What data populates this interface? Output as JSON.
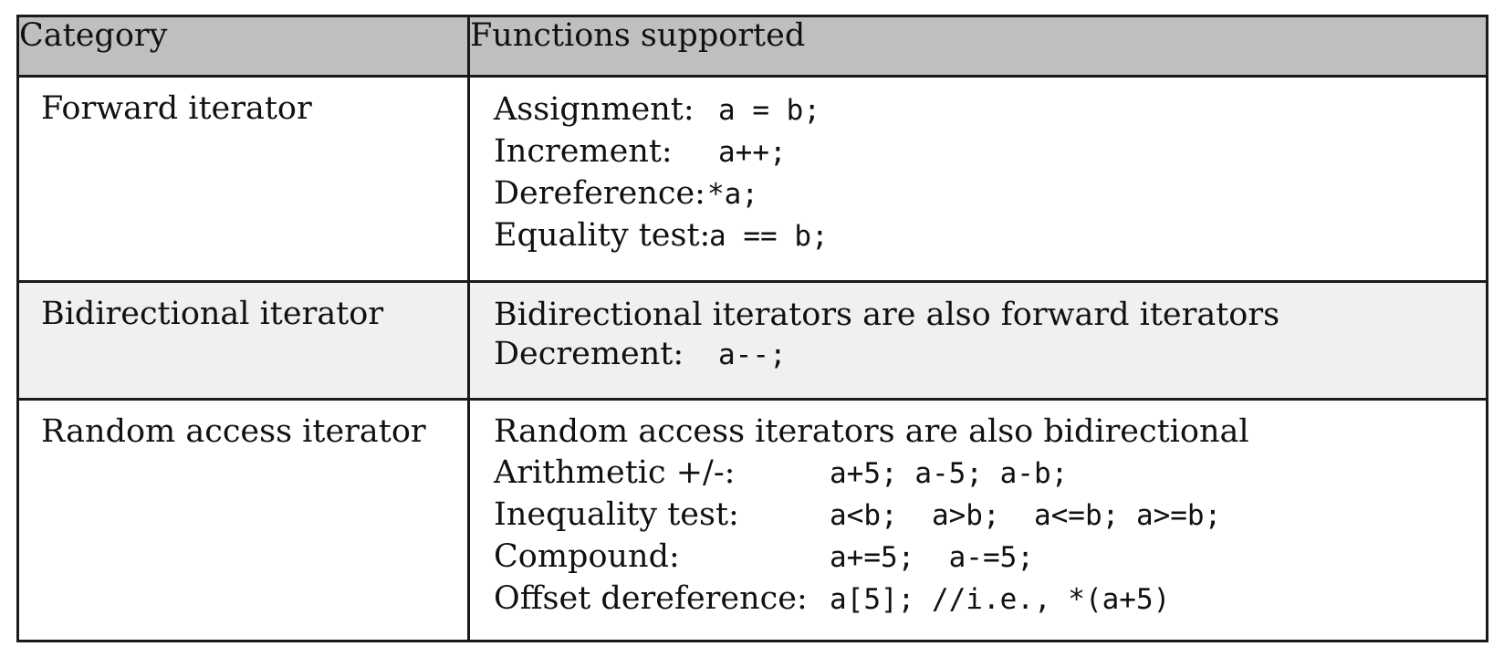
{
  "table": {
    "headers": {
      "category": "Category",
      "functions": "Functions supported"
    },
    "rows": [
      {
        "category": "Forward iterator",
        "lines": [
          {
            "label": "Assignment:",
            "code": "a = b;"
          },
          {
            "label": "Increment:",
            "code": "a++;"
          },
          {
            "label": "Dereference:",
            "code": "*a;"
          },
          {
            "label": "Equality test:",
            "code": "a == b;"
          }
        ]
      },
      {
        "category": "Bidirectional iterator",
        "note": "Bidirectional iterators are also forward iterators",
        "lines": [
          {
            "label": "Decrement:",
            "code": "a--;"
          }
        ]
      },
      {
        "category": "Random access iterator",
        "note": "Random access iterators are also bidirectional",
        "lines": [
          {
            "label": "Arithmetic +/-:",
            "code": "a+5; a-5; a-b;"
          },
          {
            "label": "Inequality test:",
            "code": "a<b;  a>b;  a<=b; a>=b;"
          },
          {
            "label": "Compound:",
            "code": "a+=5;  a-=5;"
          },
          {
            "label": "Offset dereference:",
            "code": "a[5]; //i.e., *(a+5)"
          }
        ]
      }
    ]
  }
}
